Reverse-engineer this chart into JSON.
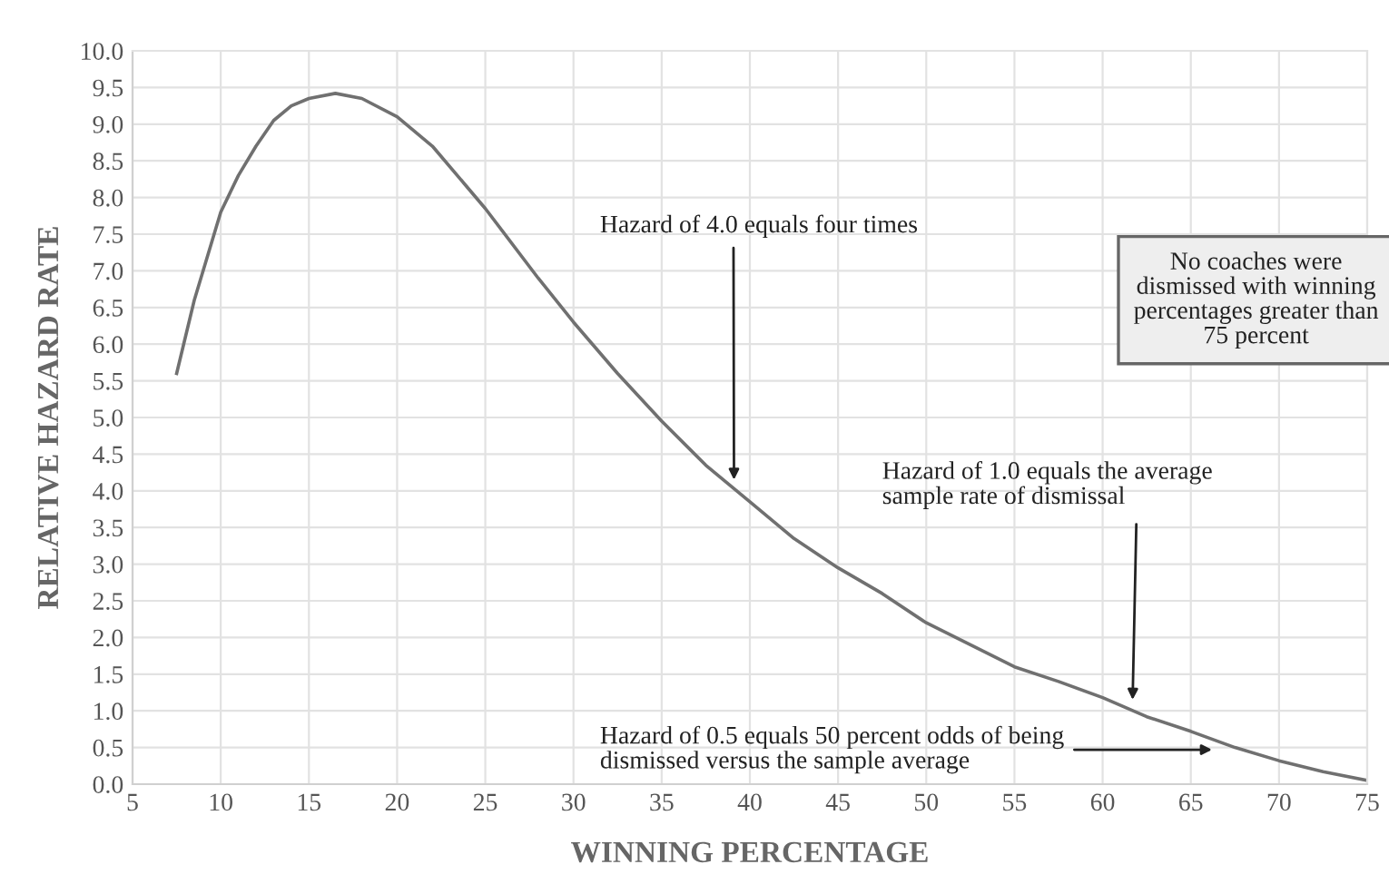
{
  "chart_data": {
    "type": "line",
    "xlabel": "WINNING PERCENTAGE",
    "ylabel": "RELATIVE HAZARD RATE",
    "x": [
      7.5,
      8.5,
      10,
      11,
      12,
      13,
      14,
      15,
      16.5,
      18,
      20,
      22,
      25,
      28,
      30,
      32.5,
      35,
      37.5,
      40,
      42.5,
      45,
      47.5,
      50,
      52.5,
      55,
      57.5,
      60,
      62.5,
      65,
      67.5,
      70,
      72.5,
      75
    ],
    "series": [
      {
        "color": "#707070",
        "values": [
          5.6,
          6.6,
          7.8,
          8.3,
          8.7,
          9.05,
          9.25,
          9.35,
          9.42,
          9.35,
          9.1,
          8.7,
          7.85,
          6.9,
          6.3,
          5.6,
          4.95,
          4.35,
          3.85,
          3.35,
          2.95,
          2.6,
          2.2,
          1.9,
          1.6,
          1.4,
          1.18,
          0.92,
          0.72,
          0.5,
          0.32,
          0.17,
          0.05
        ]
      }
    ],
    "xlim": [
      5,
      75
    ],
    "xticks": [
      5,
      10,
      15,
      20,
      25,
      30,
      35,
      40,
      45,
      50,
      55,
      60,
      65,
      70,
      75
    ],
    "ylim": [
      0,
      10
    ],
    "yticks": [
      {
        "value": 0,
        "label": "0.0"
      },
      {
        "value": 0.5,
        "label": "0.5"
      },
      {
        "value": 1,
        "label": "1.0"
      },
      {
        "value": 1.5,
        "label": "1.5"
      },
      {
        "value": 2,
        "label": "2.0"
      },
      {
        "value": 2.5,
        "label": "2.5"
      },
      {
        "value": 3,
        "label": "3.0"
      },
      {
        "value": 3.5,
        "label": "3.5"
      },
      {
        "value": 4,
        "label": "4.0"
      },
      {
        "value": 4.5,
        "label": "4.5"
      },
      {
        "value": 5,
        "label": "5.0"
      },
      {
        "value": 5.5,
        "label": "5.5"
      },
      {
        "value": 6,
        "label": "6.0"
      },
      {
        "value": 6.5,
        "label": "6.5"
      },
      {
        "value": 7,
        "label": "7.0"
      },
      {
        "value": 7.5,
        "label": "7.5"
      },
      {
        "value": 8,
        "label": "8.0"
      },
      {
        "value": 8.5,
        "label": "8.5"
      },
      {
        "value": 9,
        "label": "9.0"
      },
      {
        "value": 9.5,
        "label": "9.5"
      },
      {
        "value": 10,
        "label": "10.0"
      }
    ],
    "grid": true,
    "marker": "none",
    "line_style": "solid",
    "annotations": [
      {
        "text": "Hazard of 4.0 equals four times",
        "x": 39.1,
        "y": 4.15
      },
      {
        "text": "Hazard of 1.0 equals the average\nsample rate of dismissal",
        "x": 61.7,
        "y": 1.15
      },
      {
        "text": "Hazard of 0.5 equals 50 percent odds of being\ndismissed versus the sample average",
        "x": 66.2,
        "y": 0.47
      },
      "No coaches were\ndismissed with winning\npercentages greater than\n75 percent"
    ]
  }
}
